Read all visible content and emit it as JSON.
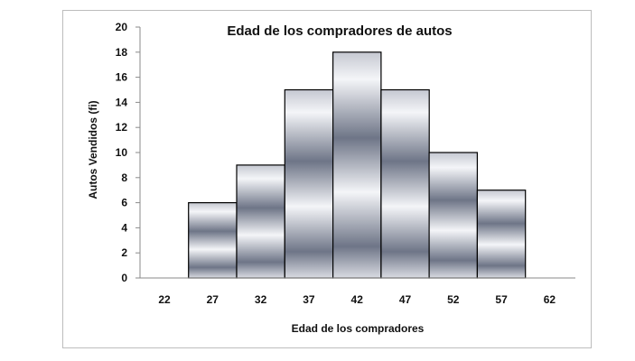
{
  "chart_data": {
    "type": "bar",
    "title": "Edad de los compradores de autos",
    "xlabel": "Edad de los compradores",
    "ylabel": "Autos  Vendidos (fi)",
    "categories": [
      "27",
      "32",
      "37",
      "42",
      "47",
      "52",
      "57"
    ],
    "values": [
      6,
      9,
      15,
      18,
      15,
      10,
      7
    ],
    "x_ticks": [
      "22",
      "27",
      "32",
      "37",
      "42",
      "47",
      "52",
      "57",
      "62"
    ],
    "y_ticks": [
      "0",
      "2",
      "4",
      "6",
      "8",
      "10",
      "12",
      "14",
      "16",
      "18",
      "20"
    ],
    "ylim": [
      0,
      20
    ],
    "grid": false,
    "legend": "none",
    "colors": {
      "bar_dark": "#6e7587",
      "bar_light": "#f4f5f8",
      "border": "#000000"
    }
  }
}
